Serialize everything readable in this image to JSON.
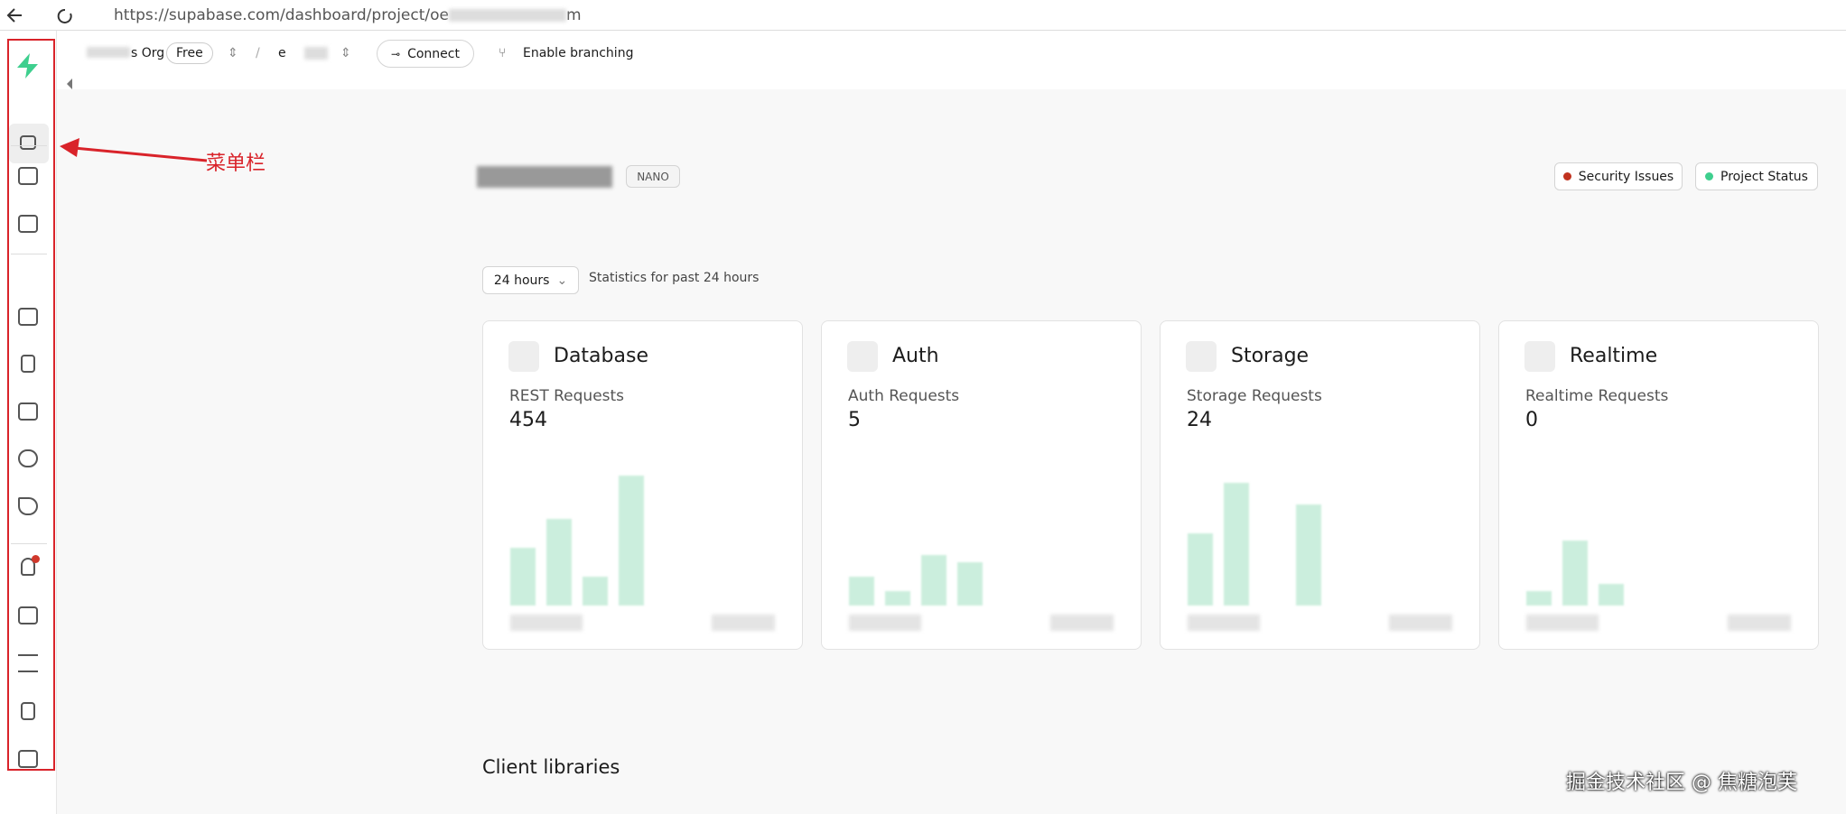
{
  "browser": {
    "url_start": "https://supabase.com/dashboard/project/oe",
    "url_end": "m"
  },
  "header": {
    "org": "s Org",
    "plan": "Free",
    "project": "e",
    "connect": "Connect",
    "branching": "Enable branching"
  },
  "annotation": {
    "label": "菜单栏"
  },
  "project": {
    "badge": "NANO",
    "security": "Security Issues",
    "status": "Project Status"
  },
  "stats": {
    "period": "24 hours",
    "caption": "Statistics for past 24 hours"
  },
  "cards": [
    {
      "title": "Database",
      "metric": "REST Requests",
      "value": 454
    },
    {
      "title": "Auth",
      "metric": "Auth Requests",
      "value": 5
    },
    {
      "title": "Storage",
      "metric": "Storage Requests",
      "value": 24
    },
    {
      "title": "Realtime",
      "metric": "Realtime Requests",
      "value": 0
    }
  ],
  "section": {
    "title": "Client libraries"
  },
  "watermark": {
    "text": "掘金技术社区 @ 焦糖泡芙"
  }
}
